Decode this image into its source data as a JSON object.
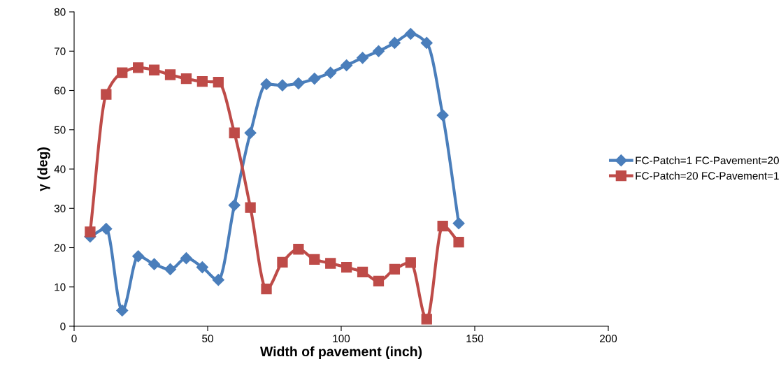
{
  "chart_data": {
    "type": "line",
    "xlabel": "Width of pavement (inch)",
    "ylabel": "γ (deg)",
    "x": [
      6,
      12,
      18,
      24,
      30,
      36,
      42,
      48,
      54,
      60,
      66,
      72,
      78,
      84,
      90,
      96,
      102,
      108,
      114,
      120,
      126,
      132,
      138,
      144
    ],
    "xlim": [
      0,
      200
    ],
    "xticks": [
      0,
      50,
      100,
      150,
      200
    ],
    "ylim": [
      0,
      80
    ],
    "yticks": [
      0,
      10,
      20,
      30,
      40,
      50,
      60,
      70,
      80
    ],
    "grid": false,
    "legend": "right",
    "line_style": "solid",
    "series": [
      {
        "name": "FC-Patch=1 FC-Pavement=20",
        "color": "#4a7ebb",
        "marker": "diamond",
        "values": [
          22.8,
          24.8,
          4,
          17.8,
          15.8,
          14.5,
          17.3,
          15,
          11.8,
          30.8,
          49.2,
          61.6,
          61.3,
          61.8,
          63,
          64.5,
          66.4,
          68.3,
          70,
          72.1,
          74.4,
          72.1,
          53.7,
          26.2
        ]
      },
      {
        "name": "FC-Patch=20 FC-Pavement=1",
        "color": "#be4b48",
        "marker": "square",
        "values": [
          24,
          59,
          64.5,
          65.8,
          65.2,
          64,
          63,
          62.3,
          62.1,
          49.2,
          30.2,
          9.5,
          16.3,
          19.6,
          17,
          16,
          15,
          13.8,
          11.5,
          14.5,
          16.2,
          1.8,
          25.5,
          21.4
        ]
      }
    ]
  }
}
